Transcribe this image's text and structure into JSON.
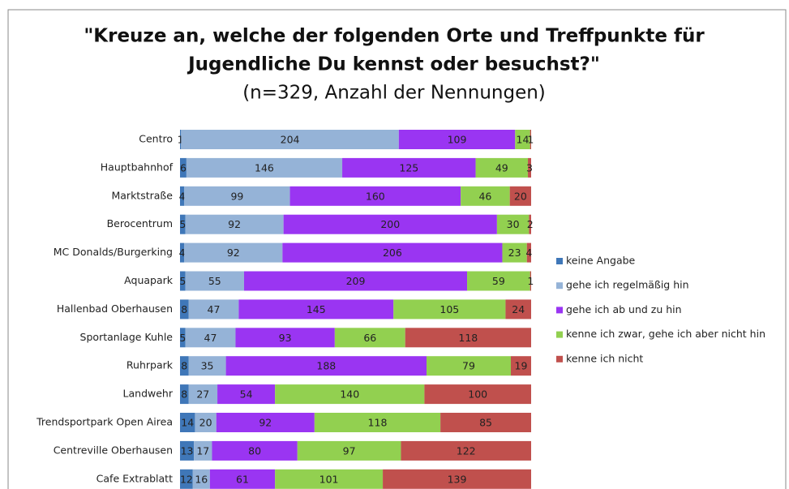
{
  "chart_data": {
    "type": "stacked_bar_horizontal",
    "title": [
      "\"Kreuze an, welche der folgenden Orte und Treffpunkte für",
      "Jugendliche Du kennst oder besuchst?\""
    ],
    "subtitle": "(n=329, Anzahl der Nennungen)",
    "categories": [
      "Centro",
      "Hauptbahnhof",
      "Marktstraße",
      "Berocentrum",
      "MC Donalds/Burgerking",
      "Aquapark",
      "Hallenbad Oberhausen",
      "Sportanlage Kuhle",
      "Ruhrpark",
      "Landwehr",
      "Trendsportpark Open Airea",
      "Centreville Oberhausen",
      "Cafe Extrablatt"
    ],
    "series": [
      {
        "name": "keine Angabe",
        "color": "#3f77b8",
        "values": [
          1,
          6,
          4,
          5,
          4,
          5,
          8,
          5,
          8,
          8,
          14,
          13,
          12
        ]
      },
      {
        "name": "gehe ich regelmäßig hin",
        "color": "#95b3d7",
        "values": [
          204,
          146,
          99,
          92,
          92,
          55,
          47,
          47,
          35,
          27,
          20,
          17,
          16
        ]
      },
      {
        "name": "gehe ich ab und zu hin",
        "color": "#9a35f2",
        "values": [
          109,
          125,
          160,
          200,
          206,
          209,
          145,
          93,
          188,
          54,
          92,
          80,
          61
        ]
      },
      {
        "name": "kenne ich zwar, gehe ich aber nicht hin",
        "color": "#92d050",
        "values": [
          14,
          49,
          46,
          30,
          23,
          59,
          105,
          66,
          79,
          140,
          118,
          97,
          101
        ]
      },
      {
        "name": "kenne ich nicht",
        "color": "#c0504d",
        "values": [
          1,
          3,
          20,
          2,
          4,
          1,
          24,
          118,
          19,
          100,
          85,
          122,
          139
        ]
      }
    ],
    "legend": "right"
  }
}
